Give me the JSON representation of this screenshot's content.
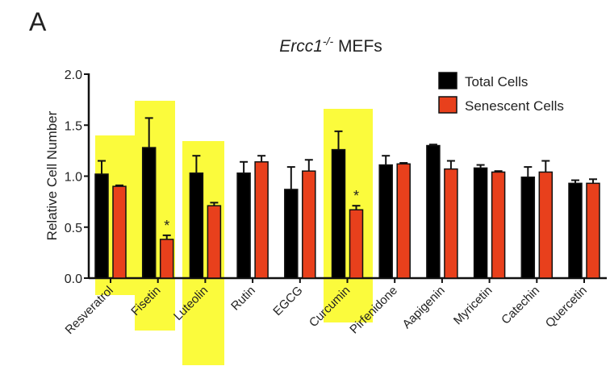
{
  "panel_label": "A",
  "chart_data": {
    "type": "bar",
    "title_italic": "Ercc1",
    "title_sup": "-/-",
    "title_rest": " MEFs",
    "ylabel": "Relative Cell Number",
    "xlabel": "",
    "ylim": [
      0,
      2.0
    ],
    "yticks": [
      "0.0",
      "0.5",
      "1.0",
      "1.5",
      "2.0"
    ],
    "legend_position": "top-right",
    "categories": [
      "Resveratrol",
      "Fisetin",
      "Luteolin",
      "Rutin",
      "EGCG",
      "Curcumin",
      "Pirfenidone",
      "Aapigenin",
      "Myricetin",
      "Catechin",
      "Quercetin"
    ],
    "highlighted": [
      "Resveratrol",
      "Fisetin",
      "Luteolin",
      "Curcumin"
    ],
    "significant": [
      "Fisetin",
      "Curcumin"
    ],
    "significance_marker": "*",
    "series": [
      {
        "name": "Total Cells",
        "color": "#000000",
        "values": [
          1.02,
          1.28,
          1.03,
          1.03,
          0.87,
          1.26,
          1.11,
          1.3,
          1.08,
          0.99,
          0.93
        ],
        "errors": [
          0.13,
          0.29,
          0.17,
          0.11,
          0.22,
          0.18,
          0.09,
          0.01,
          0.03,
          0.1,
          0.03
        ]
      },
      {
        "name": "Senescent Cells",
        "color": "#e8401c",
        "values": [
          0.9,
          0.38,
          0.71,
          1.14,
          1.05,
          0.67,
          1.12,
          1.07,
          1.04,
          1.04,
          0.93
        ],
        "errors": [
          0.01,
          0.04,
          0.03,
          0.06,
          0.11,
          0.04,
          0.01,
          0.08,
          0.01,
          0.11,
          0.04
        ]
      }
    ]
  }
}
